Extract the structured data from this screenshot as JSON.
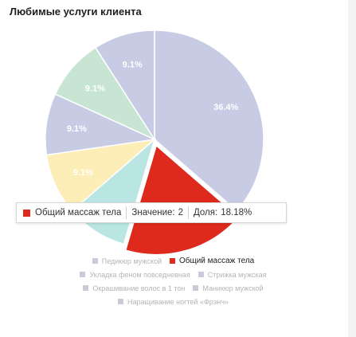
{
  "title": "Любимые услуги клиента",
  "chart_data": {
    "type": "pie",
    "title": "Любимые услуги клиента",
    "slices": [
      {
        "name": "Педикюр мужской",
        "value": 4,
        "label": "36.4%",
        "color": "#c7cbe3"
      },
      {
        "name": "Общий массаж тела",
        "value": 2,
        "label": "",
        "color": "#dd2a1c"
      },
      {
        "name": "Укладка феном повседневная",
        "value": 1,
        "label": "",
        "color": "#b9e6e3"
      },
      {
        "name": "Стрижка мужская",
        "value": 1,
        "label": "9.1%",
        "color": "#fdedb6"
      },
      {
        "name": "Окрашивание волос в 1 тон",
        "value": 1,
        "label": "9.1%",
        "color": "#c7cbe3"
      },
      {
        "name": "Маникюр мужской",
        "value": 1,
        "label": "9.1%",
        "color": "#c8e5d3"
      },
      {
        "name": "Наращивание ногтей «Фрэнч»",
        "value": 1,
        "label": "9.1%",
        "color": "#c7cbe3"
      }
    ],
    "highlighted": "Общий массаж тела",
    "legend_position": "bottom"
  },
  "tooltip": {
    "name": "Общий массаж тела",
    "value_label": "Значение:",
    "value": "2",
    "share_label": "Доля:",
    "share": "18.18%",
    "color": "#dd2a1c"
  }
}
